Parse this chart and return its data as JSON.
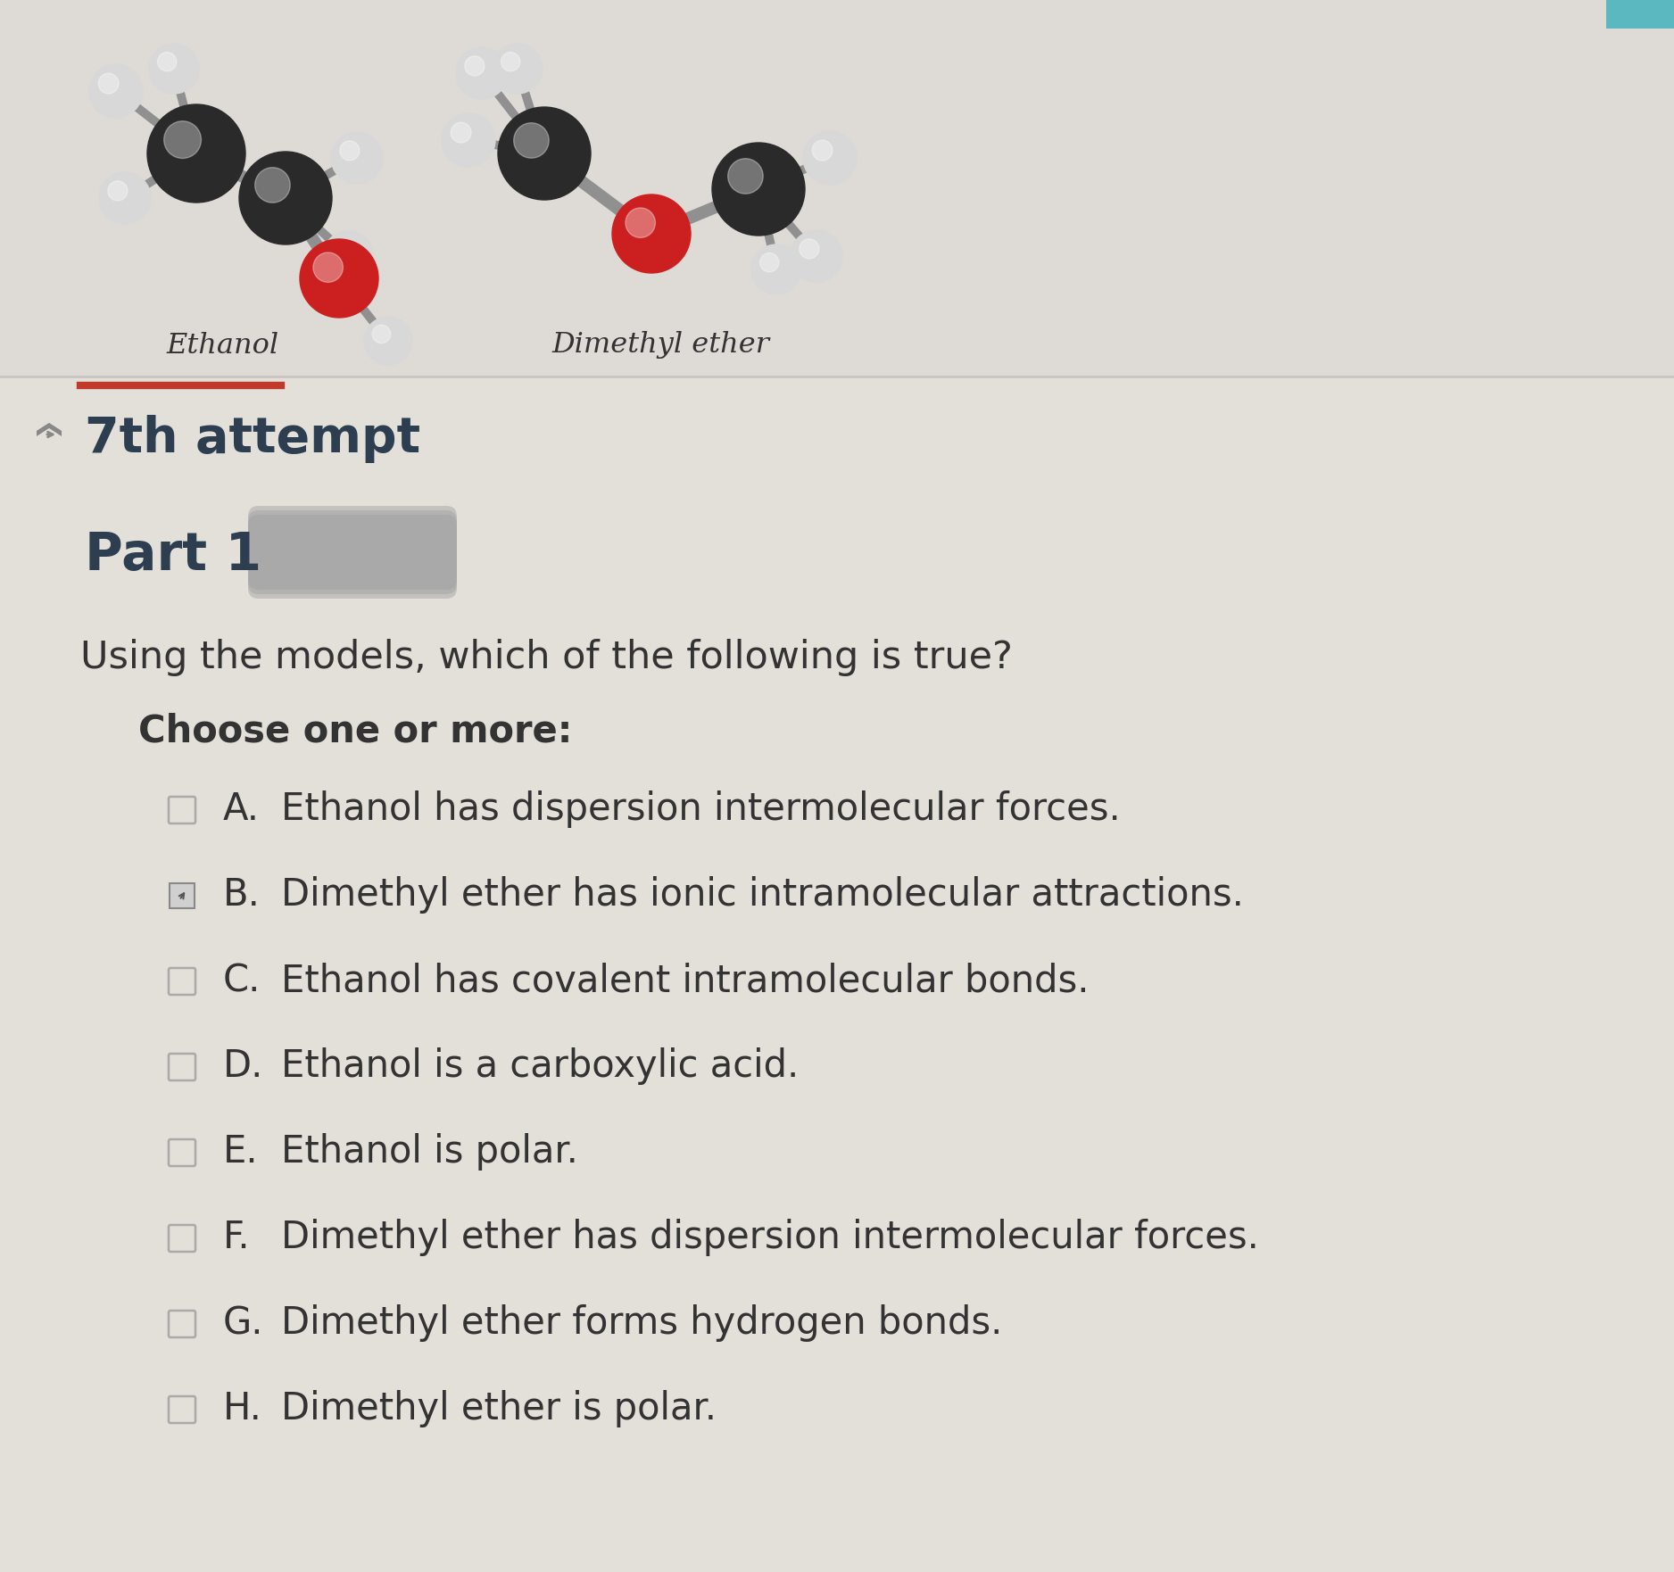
{
  "bg_top": "#dedad6",
  "bg_bottom": "#e3dfd9",
  "title_ethanol": "Ethanol",
  "title_dimethyl": "Dimethyl ether",
  "attempt_text": "7th attempt",
  "part_text": "Part 1",
  "question_text": "Using the models, which of the following is true?",
  "choose_text": "Choose one or more:",
  "options": [
    {
      "letter": "A",
      "text": "Ethanol has dispersion intermolecular forces.",
      "selected": false
    },
    {
      "letter": "B",
      "text": "Dimethyl ether has ionic intramolecular attractions.",
      "selected": true
    },
    {
      "letter": "C",
      "text": "Ethanol has covalent intramolecular bonds.",
      "selected": false
    },
    {
      "letter": "D",
      "text": "Ethanol is a carboxylic acid.",
      "selected": false
    },
    {
      "letter": "E",
      "text": "Ethanol is polar.",
      "selected": false
    },
    {
      "letter": "F",
      "text": "Dimethyl ether has dispersion intermolecular forces.",
      "selected": false
    },
    {
      "letter": "G",
      "text": "Dimethyl ether forms hydrogen bonds.",
      "selected": false
    },
    {
      "letter": "H",
      "text": "Dimethyl ether is polar.",
      "selected": false
    }
  ],
  "red_line_color": "#c0392b",
  "text_color": "#2c3e50",
  "text_color_dark": "#333333",
  "separator_color": "#c8c4c0",
  "chevron_color": "#888888",
  "circle_color": "#aaaaaa",
  "tab_color": "#5bb8c0",
  "mol_label_color": "#333333"
}
